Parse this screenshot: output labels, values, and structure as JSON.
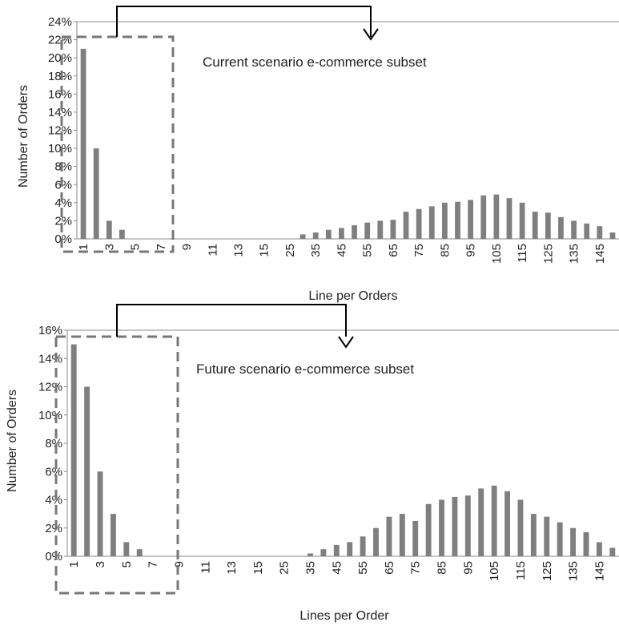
{
  "chart_data": [
    {
      "type": "bar",
      "title": "",
      "annotation": "Current scenario e-commerce subset",
      "xlabel": "Line per Orders",
      "ylabel": "Number of Orders",
      "ylim": [
        0,
        24
      ],
      "y_ticks": [
        "0%",
        "2%",
        "4%",
        "6%",
        "8%",
        "10%",
        "12%",
        "14%",
        "16%",
        "18%",
        "20%",
        "22%",
        "24%"
      ],
      "x_tick_labels": [
        "1",
        "3",
        "5",
        "7",
        "9",
        "11",
        "13",
        "15",
        "25",
        "35",
        "45",
        "55",
        "65",
        "75",
        "85",
        "95",
        "105",
        "115",
        "125",
        "135",
        "145"
      ],
      "categories": [
        "1",
        "2",
        "3",
        "4",
        "5",
        "6",
        "7",
        "8",
        "9",
        "10",
        "11",
        "12",
        "13",
        "14",
        "15",
        "20",
        "25",
        "30",
        "35",
        "40",
        "45",
        "50",
        "55",
        "60",
        "65",
        "70",
        "75",
        "80",
        "85",
        "90",
        "95",
        "100",
        "105",
        "110",
        "115",
        "120",
        "125",
        "130",
        "135",
        "140",
        "145",
        "150"
      ],
      "values": [
        21,
        10,
        2,
        1,
        0,
        0,
        0,
        0,
        0,
        0,
        0,
        0,
        0,
        0,
        0,
        0,
        0,
        0.5,
        0.7,
        1.0,
        1.2,
        1.5,
        1.8,
        2.0,
        2.1,
        3.0,
        3.3,
        3.6,
        4.0,
        4.1,
        4.3,
        4.8,
        4.9,
        4.5,
        4.0,
        3.0,
        2.9,
        2.4,
        2.0,
        1.7,
        1.4,
        0.7
      ],
      "grid": false,
      "highlight": "dashed box around lines 1-7"
    },
    {
      "type": "bar",
      "title": "",
      "annotation": "Future scenario e-commerce subset",
      "xlabel": "Lines per Order",
      "ylabel": "Number of Orders",
      "ylim": [
        0,
        16
      ],
      "y_ticks": [
        "0%",
        "2%",
        "4%",
        "6%",
        "8%",
        "10%",
        "12%",
        "14%",
        "16%"
      ],
      "x_tick_labels": [
        "1",
        "3",
        "5",
        "7",
        "9",
        "11",
        "13",
        "15",
        "25",
        "35",
        "45",
        "55",
        "65",
        "75",
        "85",
        "95",
        "105",
        "115",
        "125",
        "135",
        "145"
      ],
      "categories": [
        "1",
        "2",
        "3",
        "4",
        "5",
        "6",
        "7",
        "8",
        "9",
        "10",
        "11",
        "12",
        "13",
        "14",
        "15",
        "20",
        "25",
        "30",
        "35",
        "40",
        "45",
        "50",
        "55",
        "60",
        "65",
        "70",
        "75",
        "80",
        "85",
        "90",
        "95",
        "100",
        "105",
        "110",
        "115",
        "120",
        "125",
        "130",
        "135",
        "140",
        "145",
        "150"
      ],
      "values": [
        15,
        12,
        6,
        3,
        1,
        0.5,
        0,
        0,
        0,
        0,
        0,
        0,
        0,
        0,
        0,
        0,
        0,
        0,
        0.2,
        0.5,
        0.8,
        1.0,
        1.4,
        2.0,
        2.8,
        3.0,
        2.5,
        3.7,
        4.0,
        4.2,
        4.3,
        4.8,
        5.0,
        4.6,
        4.0,
        3.0,
        2.8,
        2.4,
        2.0,
        1.7,
        1.0,
        0.6
      ],
      "grid": false,
      "highlight": "dashed box around lines 1-7"
    }
  ]
}
